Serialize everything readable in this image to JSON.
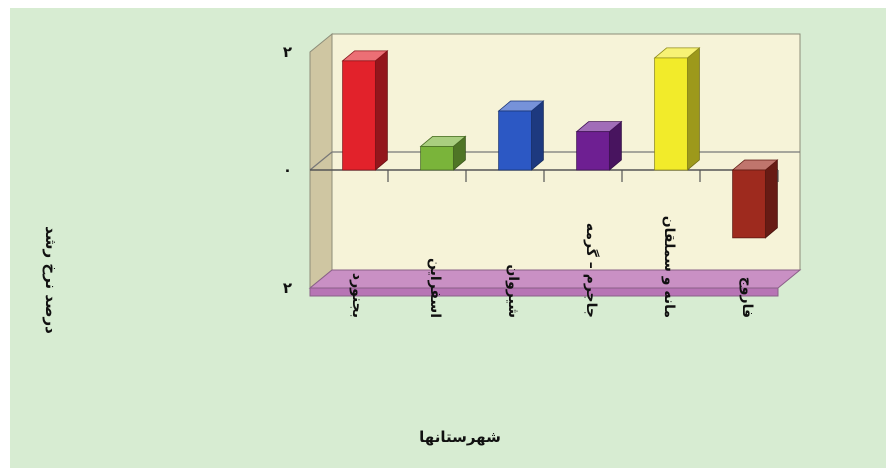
{
  "chart_data": {
    "type": "bar",
    "xlabel": "شهرستانها",
    "ylabel": "درصد نرخ رشد",
    "categories": [
      "بجنورد",
      "اسفراین",
      "شیروان",
      "جاجرم – گرمه",
      "مانه و سملقان",
      "فاروج"
    ],
    "values": [
      1.85,
      0.4,
      1.0,
      0.65,
      1.9,
      -1.15
    ],
    "colors": [
      "#e2222b",
      "#7ab43a",
      "#2c58c4",
      "#6e1f92",
      "#f2eb2a",
      "#9e2a1e"
    ],
    "ylim": [
      -2,
      2
    ],
    "yticks": [
      "۲",
      "۰",
      "۲"
    ],
    "grid": false,
    "style": "3d"
  }
}
